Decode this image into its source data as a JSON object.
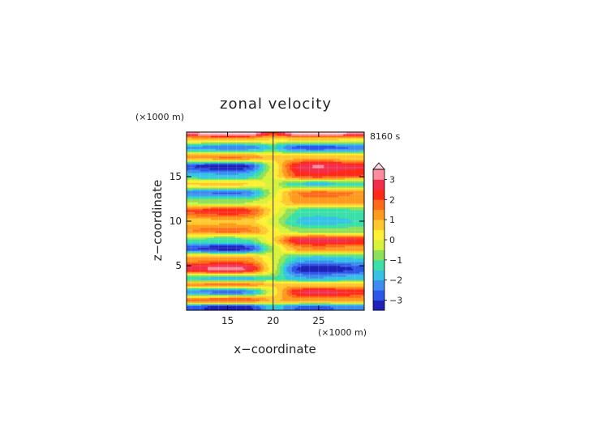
{
  "chart_data": {
    "type": "heatmap",
    "title": "zonal velocity",
    "xlabel": "x−coordinate",
    "ylabel": "z−coordinate",
    "x_unit": "(×1000 m)",
    "y_unit": "(×1000 m)",
    "time_label": "8160 s",
    "xlim": [
      10.5,
      30
    ],
    "ylim": [
      0,
      20
    ],
    "x_ticks": [
      "15",
      "20",
      "25"
    ],
    "x_tick_values": [
      15,
      20,
      25
    ],
    "y_ticks": [
      "5",
      "10",
      "15"
    ],
    "y_tick_values": [
      5,
      10,
      15
    ],
    "grid": true,
    "colorbar": {
      "ticks": [
        "3",
        "2",
        "1",
        "0",
        "−1",
        "−2",
        "−3"
      ],
      "tick_values": [
        3,
        2,
        1,
        0,
        -1,
        -2,
        -3
      ],
      "min": -3.5,
      "max": 3.5,
      "step": 0.5,
      "extend": "max"
    },
    "field": {
      "x_center": 20,
      "layers": [
        {
          "z": 0.4,
          "left": -3.0,
          "right": -2.4
        },
        {
          "z": 1.2,
          "left": 1.8,
          "right": 1.2
        },
        {
          "z": 2.1,
          "left": -2.4,
          "right": 2.6
        },
        {
          "z": 3.0,
          "left": 1.5,
          "right": 0.6
        },
        {
          "z": 3.6,
          "left": -1.6,
          "right": -1.8
        },
        {
          "z": 4.7,
          "left": 3.0,
          "right": -3.2
        },
        {
          "z": 5.9,
          "left": 1.2,
          "right": -1.6
        },
        {
          "z": 7.0,
          "left": -3.1,
          "right": 1.4
        },
        {
          "z": 7.9,
          "left": -1.2,
          "right": 2.7
        },
        {
          "z": 9.0,
          "left": 1.6,
          "right": -0.8
        },
        {
          "z": 10.0,
          "left": 0.8,
          "right": -1.6
        },
        {
          "z": 11.2,
          "left": 2.2,
          "right": -1.2
        },
        {
          "z": 12.2,
          "left": -0.6,
          "right": 1.2
        },
        {
          "z": 13.2,
          "left": -2.4,
          "right": 1.6
        },
        {
          "z": 14.2,
          "left": 0.6,
          "right": -1.5
        },
        {
          "z": 15.2,
          "left": -1.8,
          "right": 2.2
        },
        {
          "z": 16.2,
          "left": -3.2,
          "right": 2.8
        },
        {
          "z": 17.2,
          "left": 1.4,
          "right": 0.8
        },
        {
          "z": 18.3,
          "left": -2.2,
          "right": -2.6
        },
        {
          "z": 19.3,
          "left": 1.0,
          "right": 0.6
        },
        {
          "z": 19.9,
          "left": 3.6,
          "right": 3.6
        }
      ]
    }
  }
}
